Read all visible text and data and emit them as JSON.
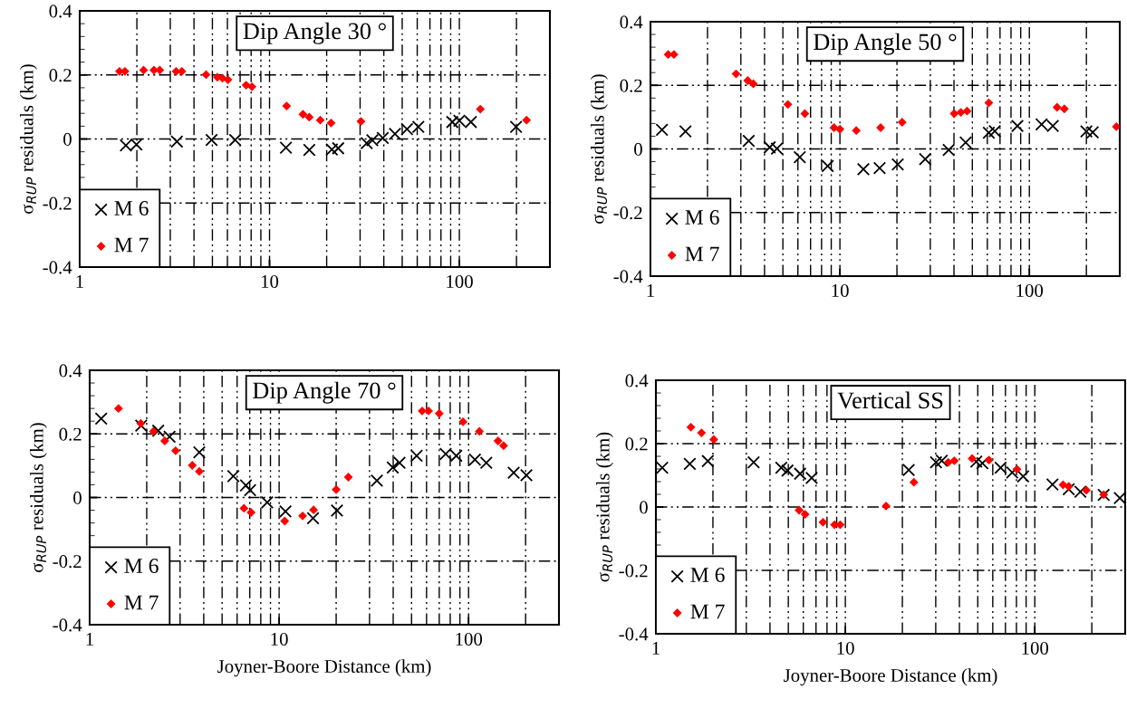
{
  "chart_data": [
    {
      "type": "scatter",
      "title": "Dip Angle 30 °",
      "ylabel": "σ$_{RUP}$ residuals (km)",
      "log": "x",
      "xlim": [
        1,
        300
      ],
      "xticks": [
        1,
        10,
        100
      ],
      "ylim": [
        -0.4,
        0.4
      ],
      "yticks": [
        -0.4,
        -0.2,
        0,
        0.2,
        0.4
      ],
      "grid": true,
      "legend": "bottom left",
      "series": [
        {
          "name": "M 6",
          "color": "#000000",
          "marker": "cross",
          "x": [
            1.75,
            1.99,
            3.25,
            4.95,
            6.59,
            12.2,
            16.2,
            21.3,
            23.0,
            32.5,
            34.8,
            39.5,
            45.8,
            53,
            60.8,
            91.8,
            100,
            115,
            199
          ],
          "values": [
            -0.02,
            -0.017,
            -0.008,
            -0.003,
            -0.003,
            -0.027,
            -0.034,
            -0.033,
            -0.029,
            -0.013,
            -0.004,
            0.003,
            0.016,
            0.031,
            0.038,
            0.053,
            0.057,
            0.053,
            0.038
          ]
        },
        {
          "name": "M 7",
          "color": "#ff0000",
          "marker": "diamond",
          "x": [
            1.62,
            1.73,
            2.17,
            2.46,
            2.64,
            3.22,
            3.45,
            4.63,
            5.31,
            5.65,
            6.04,
            7.53,
            8.08,
            12.3,
            15.0,
            16.2,
            18.5,
            21.1,
            30.3,
            129,
            226
          ],
          "values": [
            0.211,
            0.211,
            0.215,
            0.215,
            0.215,
            0.211,
            0.211,
            0.201,
            0.193,
            0.19,
            0.185,
            0.168,
            0.163,
            0.103,
            0.077,
            0.068,
            0.059,
            0.05,
            0.055,
            0.093,
            0.059
          ]
        }
      ]
    },
    {
      "type": "scatter",
      "title": "Dip Angle 50 °",
      "ylabel": "σ$_{RUP}$ residuals (km)",
      "log": "x",
      "xlim": [
        1,
        300
      ],
      "xticks": [
        1,
        10,
        100
      ],
      "ylim": [
        -0.4,
        0.4
      ],
      "yticks": [
        -0.4,
        -0.2,
        0,
        0.2,
        0.4
      ],
      "grid": true,
      "legend": "bottom left",
      "series": [
        {
          "name": "M 6",
          "color": "#000000",
          "marker": "cross",
          "x": [
            1.15,
            1.53,
            3.3,
            4.26,
            4.65,
            6.14,
            8.62,
            13.3,
            16.2,
            20.2,
            28.2,
            37.5,
            46.1,
            61.1,
            65.7,
            86.5,
            116,
            133,
            200,
            216
          ],
          "values": [
            0.06,
            0.055,
            0.025,
            0.005,
            0.001,
            -0.026,
            -0.054,
            -0.064,
            -0.06,
            -0.049,
            -0.032,
            -0.003,
            0.02,
            0.051,
            0.056,
            0.072,
            0.077,
            0.072,
            0.055,
            0.052
          ]
        },
        {
          "name": "M 7",
          "color": "#ff0000",
          "marker": "diamond",
          "x": [
            1.24,
            1.33,
            2.83,
            3.26,
            3.49,
            5.31,
            6.53,
            9.31,
            10.0,
            12.2,
            16.4,
            21.3,
            40.1,
            43.5,
            46.9,
            61.1,
            140,
            153,
            288
          ],
          "values": [
            0.297,
            0.297,
            0.236,
            0.215,
            0.205,
            0.14,
            0.111,
            0.067,
            0.062,
            0.058,
            0.067,
            0.084,
            0.111,
            0.115,
            0.119,
            0.145,
            0.131,
            0.126,
            0.07
          ]
        }
      ]
    },
    {
      "type": "scatter",
      "title": "Dip Angle 70 °",
      "ylabel": "σ$_{RUP}$ residuals (km)",
      "xlabel": "Joyner-Boore Distance (km)",
      "log": "x",
      "xlim": [
        1,
        300
      ],
      "xticks": [
        1,
        10,
        100
      ],
      "ylim": [
        -0.4,
        0.4
      ],
      "yticks": [
        -0.4,
        -0.2,
        0,
        0.2,
        0.4
      ],
      "grid": true,
      "legend": "bottom left",
      "series": [
        {
          "name": "M 6",
          "color": "#000000",
          "marker": "cross",
          "x": [
            1.15,
            1.87,
            2.3,
            2.64,
            3.79,
            5.73,
            6.68,
            7.03,
            8.65,
            10.8,
            15.1,
            20.2,
            32.8,
            39.8,
            43.2,
            53.2,
            75.7,
            86.1,
            108,
            124,
            173,
            202
          ],
          "values": [
            0.248,
            0.226,
            0.21,
            0.191,
            0.142,
            0.067,
            0.038,
            0.023,
            -0.015,
            -0.044,
            -0.065,
            -0.041,
            0.053,
            0.094,
            0.109,
            0.131,
            0.137,
            0.131,
            0.119,
            0.109,
            0.078,
            0.07
          ]
        },
        {
          "name": "M 7",
          "color": "#ff0000",
          "marker": "diamond",
          "x": [
            1.42,
            1.86,
            2.17,
            2.49,
            2.84,
            3.48,
            3.79,
            6.52,
            7.11,
            10.7,
            13.3,
            15.2,
            20.0,
            23.2,
            56.9,
            61.5,
            70,
            93.5,
            114,
            143,
            153
          ],
          "values": [
            0.28,
            0.233,
            0.208,
            0.178,
            0.147,
            0.101,
            0.082,
            -0.034,
            -0.047,
            -0.074,
            -0.058,
            -0.039,
            0.025,
            0.064,
            0.272,
            0.272,
            0.264,
            0.238,
            0.208,
            0.178,
            0.163
          ]
        }
      ]
    },
    {
      "type": "scatter",
      "title": "Vertical SS",
      "ylabel": "σ$_{RUP}$ residuals (km)",
      "xlabel": "Joyner-Boore Distance (km)",
      "log": "x",
      "xlim": [
        1,
        300
      ],
      "xticks": [
        1,
        10,
        100
      ],
      "ylim": [
        -0.4,
        0.4
      ],
      "yticks": [
        -0.4,
        -0.2,
        0,
        0.2,
        0.4
      ],
      "grid": true,
      "legend": "bottom left",
      "series": [
        {
          "name": "M 6",
          "color": "#000000",
          "marker": "cross",
          "x": [
            1.08,
            1.51,
            1.88,
            3.28,
            4.59,
            4.95,
            5.77,
            6.64,
            21.6,
            30.1,
            32.3,
            49.1,
            52.9,
            66.0,
            76,
            86.8,
            124,
            151,
            174,
            231,
            281
          ],
          "values": [
            0.124,
            0.136,
            0.145,
            0.141,
            0.124,
            0.115,
            0.105,
            0.092,
            0.117,
            0.141,
            0.146,
            0.143,
            0.138,
            0.124,
            0.109,
            0.097,
            0.071,
            0.056,
            0.048,
            0.038,
            0.028
          ]
        },
        {
          "name": "M 7",
          "color": "#ff0000",
          "marker": "diamond",
          "x": [
            1.53,
            1.74,
            2.02,
            5.7,
            6.13,
            7.62,
            8.77,
            9.39,
            16.4,
            23.0,
            34.9,
            37.6,
            46.7,
            57.3,
            80.5,
            141,
            151,
            187,
            231
          ],
          "values": [
            0.252,
            0.234,
            0.213,
            -0.01,
            -0.023,
            -0.048,
            -0.056,
            -0.056,
            0.003,
            0.078,
            0.141,
            0.146,
            0.153,
            0.148,
            0.119,
            0.07,
            0.065,
            0.053,
            0.039
          ]
        }
      ]
    }
  ]
}
